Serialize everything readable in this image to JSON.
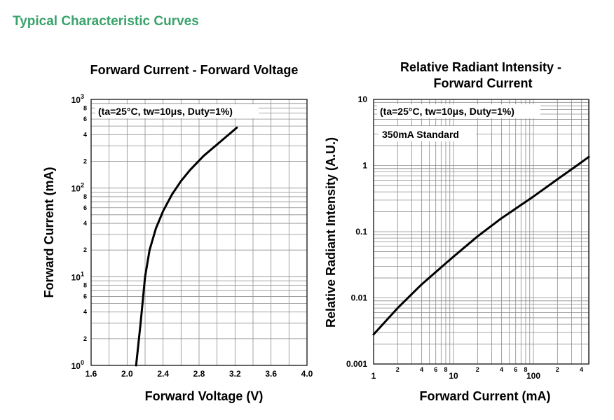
{
  "section_title": "Typical Characteristic Curves",
  "chart_data": [
    {
      "type": "line",
      "title": "Forward Current - Forward Voltage",
      "xlabel": "Forward Voltage (V)",
      "ylabel": "Forward Current (mA)",
      "xscale": "linear",
      "yscale": "log",
      "xlim": [
        1.6,
        4.0
      ],
      "ylim": [
        1,
        1000
      ],
      "x_ticks": [
        "1.6",
        "2.0",
        "2.4",
        "2.8",
        "3.2",
        "3.6",
        "4.0"
      ],
      "y_major_ticks": [
        {
          "base": "10",
          "exp": "0"
        },
        {
          "base": "10",
          "exp": "1"
        },
        {
          "base": "10",
          "exp": "2"
        },
        {
          "base": "10",
          "exp": "3"
        }
      ],
      "y_minor_labels": [
        "2",
        "4",
        "6",
        "8"
      ],
      "annotations": [
        "(ta=25°C, tw=10μs, Duty=1%)"
      ],
      "grid": true,
      "series": [
        {
          "x": [
            2.1,
            2.15,
            2.2,
            2.25,
            2.32,
            2.4,
            2.5,
            2.6,
            2.7,
            2.85,
            3.0,
            3.22
          ],
          "y": [
            1,
            3,
            10,
            20,
            35,
            55,
            85,
            120,
            160,
            230,
            310,
            480
          ]
        }
      ]
    },
    {
      "type": "line",
      "title": "Relative Radiant Intensity - Forward Current",
      "xlabel": "Forward Current (mA)",
      "ylabel": "Relative Radiant Intensity (A.U.)",
      "xscale": "log",
      "yscale": "log",
      "xlim": [
        1,
        500
      ],
      "ylim": [
        0.001,
        10
      ],
      "x_major_labels": [
        "1",
        "10",
        "100"
      ],
      "x_minor_labels": [
        "2",
        "4",
        "6",
        "8"
      ],
      "y_ticks": [
        "0.001",
        "0.01",
        "0.1",
        "1",
        "10"
      ],
      "annotations": [
        "(ta=25°C, tw=10μs, Duty=1%)",
        "350mA Standard"
      ],
      "grid": true,
      "series": [
        {
          "x": [
            1,
            2,
            4,
            10,
            20,
            40,
            100,
            200,
            350,
            500
          ],
          "y": [
            0.0028,
            0.007,
            0.016,
            0.042,
            0.085,
            0.16,
            0.34,
            0.62,
            1.0,
            1.35
          ]
        }
      ]
    }
  ]
}
